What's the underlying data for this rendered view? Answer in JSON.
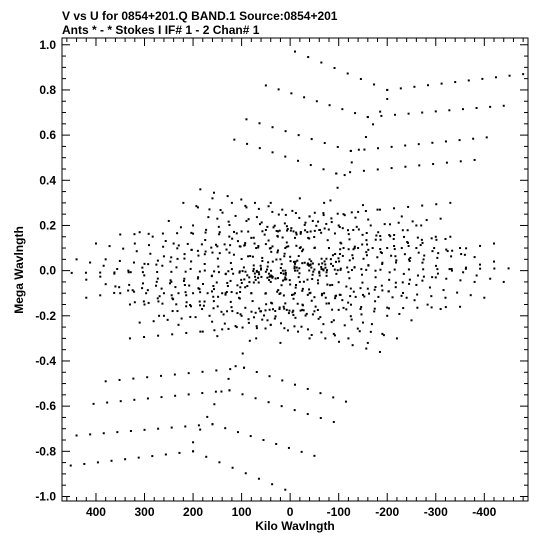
{
  "chart_data": {
    "type": "scatter",
    "title_line1": "V vs U for 0854+201.Q BAND.1   Source:0854+201",
    "title_line2": "Ants * - *     Stokes I  IF# 1 - 2  Chan# 1",
    "xlabel": "Kilo Wavlngth",
    "ylabel": "Mega Wavlngth",
    "x_reversed": true,
    "xlim": [
      470,
      -490
    ],
    "ylim": [
      -1.02,
      1.03
    ],
    "x_ticks": [
      400,
      300,
      200,
      100,
      0,
      -100,
      -200,
      -300,
      -400
    ],
    "x_tick_labels": [
      "400",
      "300",
      "200",
      "100",
      "0",
      "-100",
      "-200",
      "-300",
      "-400"
    ],
    "y_ticks": [
      1.0,
      0.8,
      0.6,
      0.4,
      0.2,
      0.0,
      -0.2,
      -0.4,
      -0.6,
      -0.8,
      -1.0
    ],
    "y_tick_labels": [
      "1.0",
      "0.8",
      "0.6",
      "0.4",
      "0.2",
      "0.0",
      "-0.2",
      "-0.4",
      "-0.6",
      "-0.8",
      "-1.0"
    ],
    "grid": false,
    "marker_color": "#000000",
    "symmetric_about_origin": true,
    "tracks": [
      {
        "points": [
          [
            -200,
            0.8
          ],
          [
            -480,
            0.87
          ]
        ]
      },
      {
        "points": [
          [
            -200,
            0.8
          ],
          [
            -10,
            0.97
          ]
        ]
      },
      {
        "points": [
          [
            -160,
            0.68
          ],
          [
            -440,
            0.73
          ]
        ]
      },
      {
        "points": [
          [
            -160,
            0.68
          ],
          [
            50,
            0.82
          ]
        ]
      },
      {
        "points": [
          [
            -125,
            0.53
          ],
          [
            -405,
            0.59
          ]
        ]
      },
      {
        "points": [
          [
            -125,
            0.53
          ],
          [
            90,
            0.67
          ]
        ]
      },
      {
        "points": [
          [
            -95,
            0.43
          ],
          [
            -380,
            0.49
          ]
        ]
      },
      {
        "points": [
          [
            -95,
            0.43
          ],
          [
            115,
            0.58
          ]
        ]
      },
      {
        "points": [
          [
            -40,
            0.24
          ],
          [
            -330,
            0.3
          ]
        ]
      },
      {
        "points": [
          [
            -40,
            0.24
          ],
          [
            185,
            0.36
          ]
        ]
      },
      {
        "points": [
          [
            -22,
            0.17
          ],
          [
            -310,
            0.23
          ]
        ]
      },
      {
        "points": [
          [
            -22,
            0.17
          ],
          [
            220,
            0.3
          ]
        ]
      },
      {
        "points": [
          [
            -200,
            0.76
          ],
          [
            -10,
            0.03
          ]
        ]
      },
      {
        "points": [
          [
            -450,
            0.01
          ],
          [
            -10,
            0.0
          ]
        ]
      },
      {
        "points": [
          [
            -420,
            0.12
          ],
          [
            40,
            -0.05
          ]
        ]
      },
      {
        "points": [
          [
            -400,
            -0.12
          ],
          [
            20,
            0.05
          ]
        ]
      },
      {
        "points": [
          [
            -330,
            0.15
          ],
          [
            300,
            -0.15
          ]
        ]
      },
      {
        "points": [
          [
            -310,
            -0.17
          ],
          [
            200,
            0.2
          ]
        ]
      },
      {
        "points": [
          [
            -270,
            0.2
          ],
          [
            260,
            -0.2
          ]
        ]
      },
      {
        "points": [
          [
            -360,
            0.07
          ],
          [
            350,
            -0.1
          ]
        ]
      },
      {
        "points": [
          [
            -380,
            -0.05
          ],
          [
            320,
            0.12
          ]
        ]
      },
      {
        "points": [
          [
            -250,
            -0.22
          ],
          [
            150,
            0.23
          ]
        ]
      },
      {
        "points": [
          [
            -230,
            0.24
          ],
          [
            110,
            -0.25
          ]
        ]
      },
      {
        "points": [
          [
            -190,
            -0.28
          ],
          [
            90,
            0.28
          ]
        ]
      },
      {
        "points": [
          [
            -180,
            0.27
          ],
          [
            70,
            -0.3
          ]
        ]
      },
      {
        "points": [
          [
            -160,
            -0.32
          ],
          [
            40,
            0.3
          ]
        ]
      },
      {
        "points": [
          [
            -150,
            0.29
          ],
          [
            20,
            -0.32
          ]
        ]
      },
      {
        "points": [
          [
            -140,
            0.26
          ],
          [
            300,
            0.03
          ]
        ]
      },
      {
        "points": [
          [
            -120,
            -0.3
          ],
          [
            380,
            -0.06
          ]
        ]
      },
      {
        "points": [
          [
            -100,
            0.2
          ],
          [
            420,
            -0.04
          ]
        ]
      },
      {
        "points": [
          [
            -90,
            -0.22
          ],
          [
            440,
            0.05
          ]
        ]
      },
      {
        "points": [
          [
            -60,
            0.18
          ],
          [
            350,
            0.16
          ]
        ]
      },
      {
        "points": [
          [
            -50,
            -0.18
          ],
          [
            320,
            -0.14
          ]
        ]
      },
      {
        "points": [
          [
            -80,
            0.1
          ],
          [
            240,
            0.12
          ]
        ]
      },
      {
        "points": [
          [
            -70,
            -0.1
          ],
          [
            260,
            -0.1
          ]
        ]
      }
    ]
  }
}
